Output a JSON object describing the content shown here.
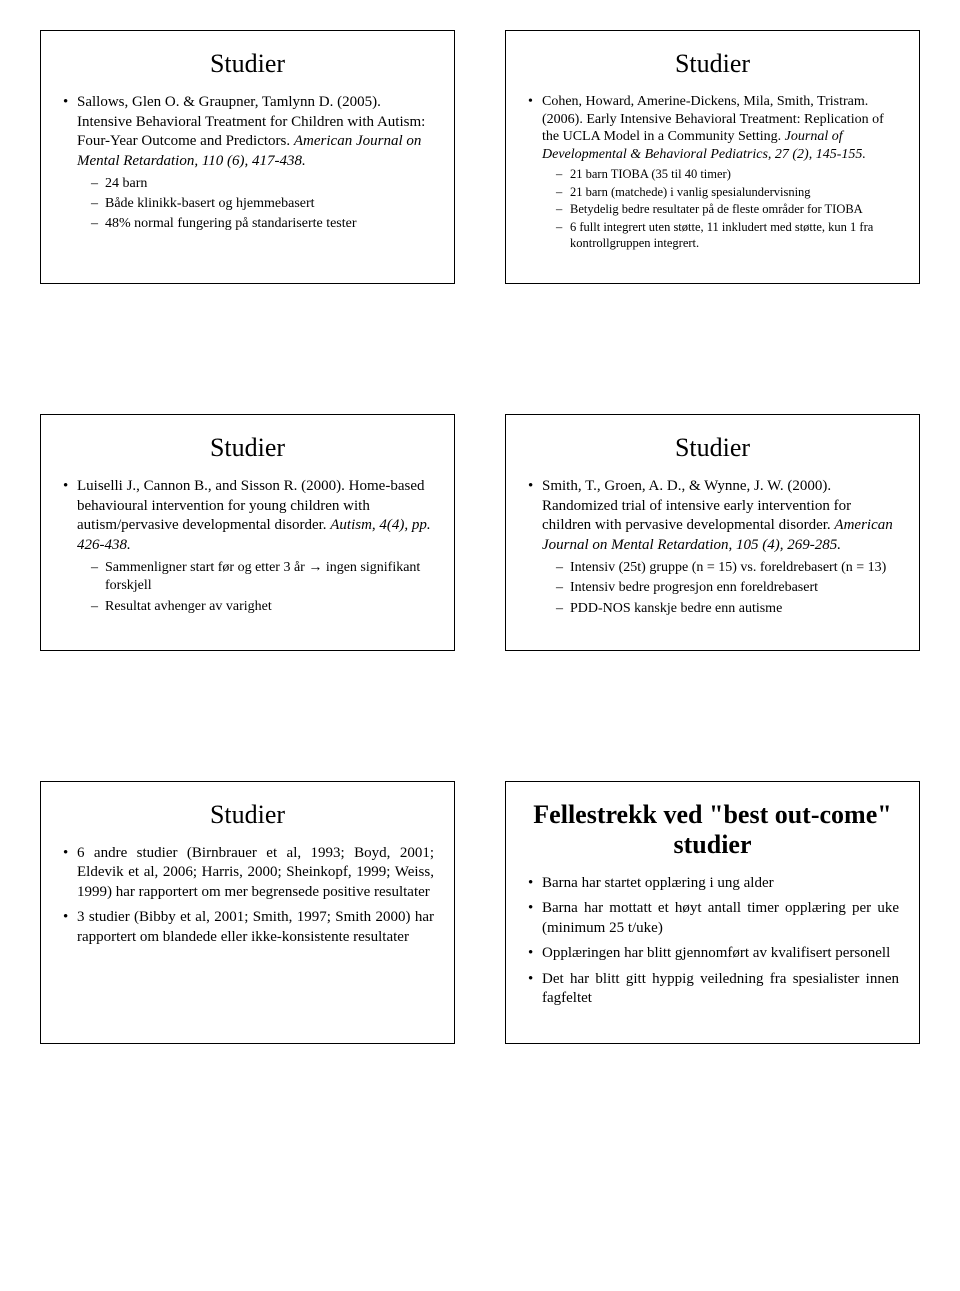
{
  "slides": {
    "s1": {
      "title": "Studier",
      "ref_pre": "Sallows, Glen O. & Graupner, Tamlynn D. (2005). Intensive Behavioral Treatment for Children with Autism: Four-Year Outcome and Predictors. ",
      "ref_ital": "American Journal on Mental Retardation, 110 (6), 417-438.",
      "sub": [
        "24 barn",
        "Både klinikk-basert og hjemmebasert",
        "48% normal fungering på standariserte tester"
      ]
    },
    "s2": {
      "title": "Studier",
      "ref_pre": "Cohen, Howard, Amerine-Dickens, Mila, Smith, Tristram. (2006). Early Intensive Behavioral Treatment: Replication of the UCLA Model in a Community Setting. ",
      "ref_ital": "Journal of Developmental & Behavioral Pediatrics, 27 (2), 145-155.",
      "sub": [
        "21 barn TIOBA (35 til 40 timer)",
        "21 barn (matchede) i vanlig spesialundervisning",
        "Betydelig bedre resultater på de fleste områder for TIOBA",
        "6 fullt integrert uten støtte, 11 inkludert med støtte, kun 1 fra kontrollgruppen integrert."
      ]
    },
    "s3": {
      "title": "Studier",
      "ref_pre": "Luiselli J., Cannon B., and Sisson R. (2000). Home-based behavioural intervention for young children with autism/pervasive developmental disorder. ",
      "ref_ital": "Autism, 4(4), pp. 426-438.",
      "sub": [
        "Sammenligner start før og etter 3 år → ingen signifikant forskjell",
        "Resultat avhenger av varighet"
      ]
    },
    "s4": {
      "title": "Studier",
      "ref_pre": "Smith, T., Groen, A. D., & Wynne, J. W. (2000). Randomized trial of intensive early intervention for children with pervasive developmental disorder. ",
      "ref_ital": "American Journal on Mental Retardation, 105 (4), 269-285.",
      "sub": [
        "Intensiv (25t) gruppe (n = 15) vs. foreldrebasert (n = 13)",
        "Intensiv bedre progresjon enn foreldrebasert",
        "PDD-NOS kanskje bedre enn autisme"
      ]
    },
    "s5": {
      "title": "Studier",
      "items": [
        "6 andre studier (Birnbrauer et al, 1993; Boyd, 2001; Eldevik et al, 2006; Harris, 2000; Sheinkopf, 1999; Weiss, 1999) har rapportert om mer begrensede positive resultater",
        "3 studier (Bibby et al, 2001; Smith, 1997; Smith 2000) har rapportert om blandede eller ikke-konsistente resultater"
      ]
    },
    "s6": {
      "title": "Fellestrekk ved \"best out-come\" studier",
      "items": [
        "Barna har startet opplæring i ung alder",
        "Barna har mottatt et høyt antall timer opplæring per uke (minimum 25 t/uke)",
        "Opplæringen har blitt gjennomført av kvalifisert personell",
        "Det har blitt gitt hyppig veiledning fra spesialister innen fagfeltet"
      ]
    }
  }
}
